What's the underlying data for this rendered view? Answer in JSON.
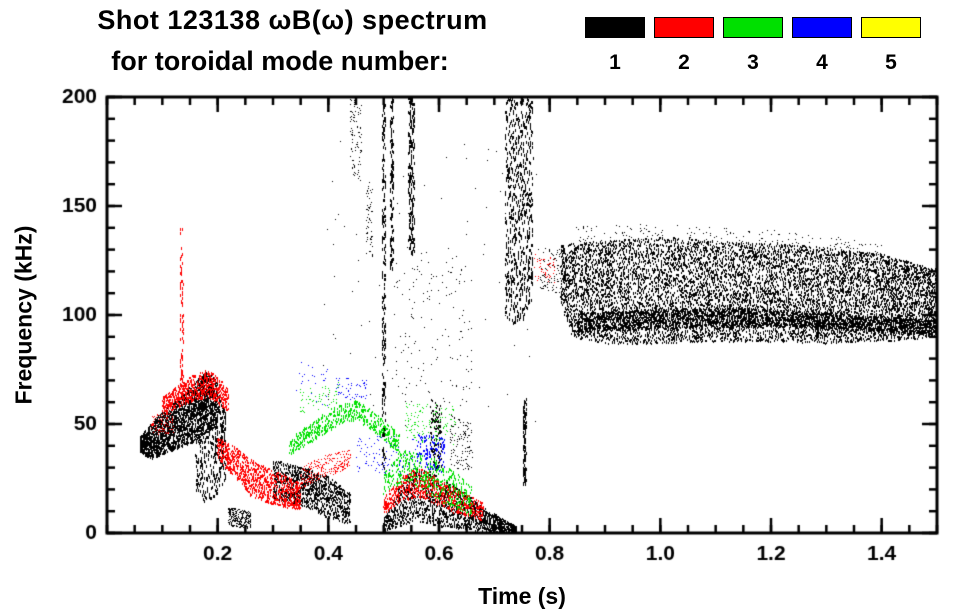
{
  "chart_data": {
    "type": "scatter",
    "title": "Shot 123138 ωB(ω) spectrum",
    "subtitle": "for toroidal mode number:",
    "xlabel": "Time (s)",
    "ylabel": "Frequency (kHz)",
    "xlim": [
      0,
      1.5
    ],
    "ylim": [
      0,
      200
    ],
    "xticks": [
      0.2,
      0.4,
      0.6,
      0.8,
      1.0,
      1.2,
      1.4
    ],
    "yticks": [
      0,
      50,
      100,
      150,
      200
    ],
    "xtick_minor_step": 0.05,
    "ytick_minor_step": 10,
    "grid": false,
    "legend_position": "top-right",
    "legend": [
      {
        "label": "1",
        "color": "#000000"
      },
      {
        "label": "2",
        "color": "#ff0000"
      },
      {
        "label": "3",
        "color": "#00e000"
      },
      {
        "label": "4",
        "color": "#0000ff"
      },
      {
        "label": "5",
        "color": "#ffff00"
      }
    ],
    "clusters": [
      {
        "name": "n1-quasistationary-band",
        "color": "#000000",
        "n": 9000,
        "h": 2,
        "path": [
          [
            0.82,
            104,
            132
          ],
          [
            0.84,
            90,
            133
          ],
          [
            0.9,
            87,
            134
          ],
          [
            1.0,
            87,
            136
          ],
          [
            1.1,
            88,
            134
          ],
          [
            1.2,
            88,
            133
          ],
          [
            1.3,
            87,
            131
          ],
          [
            1.4,
            88,
            128
          ],
          [
            1.5,
            90,
            121
          ]
        ]
      },
      {
        "name": "n1-band-dark-core",
        "color": "#000000",
        "n": 2600,
        "h": 2,
        "path": [
          [
            0.85,
            92,
            101
          ],
          [
            1.0,
            94,
            103
          ],
          [
            1.2,
            95,
            103
          ],
          [
            1.35,
            93,
            100
          ],
          [
            1.5,
            91,
            98
          ]
        ]
      },
      {
        "name": "n1-band-halo",
        "color": "#000000",
        "n": 240,
        "path": [
          [
            0.84,
            130,
            141
          ],
          [
            1.0,
            132,
            142
          ],
          [
            1.2,
            128,
            139
          ],
          [
            1.4,
            124,
            133
          ]
        ]
      },
      {
        "name": "n1-early-cluster",
        "color": "#000000",
        "n": 2300,
        "h": 2,
        "path": [
          [
            0.06,
            37,
            44
          ],
          [
            0.08,
            34,
            50
          ],
          [
            0.1,
            36,
            56
          ],
          [
            0.12,
            38,
            60
          ],
          [
            0.14,
            40,
            64
          ],
          [
            0.16,
            42,
            70
          ],
          [
            0.18,
            46,
            74
          ],
          [
            0.2,
            48,
            70
          ]
        ]
      },
      {
        "name": "n1-early-streaks",
        "color": "#000000",
        "n": 420,
        "h": 3,
        "path": [
          [
            0.16,
            18,
            62
          ],
          [
            0.18,
            14,
            76
          ],
          [
            0.2,
            18,
            66
          ],
          [
            0.215,
            24,
            56
          ]
        ]
      },
      {
        "name": "n1-early-low-blob",
        "color": "#000000",
        "n": 260,
        "path": [
          [
            0.22,
            3,
            12
          ],
          [
            0.26,
            2,
            10
          ]
        ]
      },
      {
        "name": "n1-mid-descending",
        "color": "#000000",
        "n": 1100,
        "h": 2,
        "path": [
          [
            0.3,
            16,
            34
          ],
          [
            0.33,
            14,
            32
          ],
          [
            0.36,
            12,
            30
          ],
          [
            0.4,
            7,
            26
          ],
          [
            0.44,
            4,
            18
          ]
        ]
      },
      {
        "name": "n1-chevron",
        "color": "#000000",
        "n": 1700,
        "h": 2,
        "path": [
          [
            0.5,
            1,
            6
          ],
          [
            0.53,
            3,
            22
          ],
          [
            0.56,
            6,
            30
          ],
          [
            0.6,
            3,
            26
          ],
          [
            0.64,
            2,
            20
          ],
          [
            0.68,
            1,
            12
          ],
          [
            0.72,
            0,
            6
          ],
          [
            0.74,
            0,
            3
          ]
        ]
      },
      {
        "name": "n1-streak-t050",
        "color": "#000000",
        "n": 240,
        "h": 3,
        "path": [
          [
            0.497,
            30,
            200
          ],
          [
            0.504,
            30,
            200
          ]
        ]
      },
      {
        "name": "n1-streak-t051",
        "color": "#000000",
        "n": 140,
        "h": 3,
        "path": [
          [
            0.512,
            120,
            200
          ],
          [
            0.518,
            120,
            200
          ]
        ]
      },
      {
        "name": "n1-streak-t055",
        "color": "#000000",
        "n": 220,
        "h": 3,
        "path": [
          [
            0.545,
            128,
            200
          ],
          [
            0.556,
            128,
            200
          ]
        ]
      },
      {
        "name": "n1-streaks-t075",
        "color": "#000000",
        "n": 700,
        "h": 3,
        "path": [
          [
            0.72,
            100,
            200
          ],
          [
            0.735,
            95,
            200
          ],
          [
            0.755,
            98,
            200
          ],
          [
            0.77,
            108,
            200
          ]
        ]
      },
      {
        "name": "n1-streak-t0755-low",
        "color": "#000000",
        "n": 120,
        "h": 3,
        "path": [
          [
            0.752,
            22,
            62
          ],
          [
            0.758,
            22,
            62
          ]
        ]
      },
      {
        "name": "n1-dots-t044-top",
        "color": "#000000",
        "n": 90,
        "path": [
          [
            0.44,
            165,
            200
          ],
          [
            0.46,
            160,
            200
          ]
        ]
      },
      {
        "name": "n1-dots-t047",
        "color": "#000000",
        "n": 60,
        "path": [
          [
            0.468,
            128,
            165
          ],
          [
            0.48,
            125,
            160
          ]
        ]
      },
      {
        "name": "n1-specks-mid",
        "color": "#000000",
        "n": 140,
        "path": [
          [
            0.52,
            60,
            130
          ],
          [
            0.6,
            60,
            135
          ],
          [
            0.66,
            55,
            120
          ]
        ]
      },
      {
        "name": "n1-specks-t059",
        "color": "#000000",
        "n": 140,
        "h": 2,
        "path": [
          [
            0.585,
            28,
            62
          ],
          [
            0.605,
            30,
            58
          ]
        ]
      },
      {
        "name": "n1-specks-t064",
        "color": "#000000",
        "n": 120,
        "path": [
          [
            0.62,
            30,
            55
          ],
          [
            0.66,
            28,
            50
          ]
        ]
      },
      {
        "name": "n1-dots-pre-band",
        "color": "#000000",
        "n": 90,
        "path": [
          [
            0.78,
            112,
            132
          ],
          [
            0.82,
            110,
            130
          ]
        ]
      },
      {
        "name": "n1-sparse-noise",
        "color": "#000000",
        "n": 90,
        "path": [
          [
            0.38,
            45,
            190
          ],
          [
            0.78,
            45,
            190
          ]
        ]
      },
      {
        "name": "n2-early-band",
        "color": "#ff0000",
        "n": 700,
        "h": 2,
        "path": [
          [
            0.1,
            54,
            62
          ],
          [
            0.12,
            57,
            66
          ],
          [
            0.14,
            59,
            70
          ],
          [
            0.16,
            61,
            73
          ],
          [
            0.18,
            62,
            75
          ],
          [
            0.2,
            60,
            72
          ],
          [
            0.22,
            55,
            66
          ]
        ]
      },
      {
        "name": "n2-spike-t0135",
        "color": "#ff0000",
        "n": 70,
        "h": 3,
        "path": [
          [
            0.132,
            70,
            140
          ],
          [
            0.138,
            70,
            140
          ]
        ]
      },
      {
        "name": "n2-early-dots",
        "color": "#ff0000",
        "n": 90,
        "path": [
          [
            0.08,
            44,
            54
          ],
          [
            0.12,
            46,
            56
          ]
        ]
      },
      {
        "name": "n2-descending-arc",
        "color": "#ff0000",
        "n": 950,
        "h": 2,
        "path": [
          [
            0.2,
            34,
            44
          ],
          [
            0.23,
            26,
            40
          ],
          [
            0.26,
            17,
            34
          ],
          [
            0.29,
            14,
            30
          ],
          [
            0.32,
            12,
            27
          ],
          [
            0.35,
            11,
            23
          ]
        ]
      },
      {
        "name": "n2-arc-tail",
        "color": "#ff0000",
        "n": 260,
        "path": [
          [
            0.35,
            20,
            30
          ],
          [
            0.38,
            24,
            34
          ],
          [
            0.41,
            27,
            37
          ],
          [
            0.44,
            30,
            38
          ]
        ]
      },
      {
        "name": "n2-chevron",
        "color": "#ff0000",
        "n": 750,
        "h": 2,
        "path": [
          [
            0.5,
            9,
            16
          ],
          [
            0.53,
            14,
            26
          ],
          [
            0.56,
            17,
            30
          ],
          [
            0.59,
            14,
            27
          ],
          [
            0.62,
            10,
            22
          ],
          [
            0.65,
            8,
            18
          ],
          [
            0.68,
            6,
            14
          ]
        ]
      },
      {
        "name": "n2-dots-late",
        "color": "#ff0000",
        "n": 50,
        "path": [
          [
            0.77,
            116,
            128
          ],
          [
            0.81,
            114,
            126
          ]
        ]
      },
      {
        "name": "n3-arc",
        "color": "#00e000",
        "n": 600,
        "h": 2,
        "path": [
          [
            0.33,
            36,
            43
          ],
          [
            0.36,
            40,
            49
          ],
          [
            0.39,
            45,
            55
          ],
          [
            0.42,
            50,
            59
          ],
          [
            0.45,
            52,
            61
          ],
          [
            0.48,
            47,
            56
          ],
          [
            0.51,
            40,
            50
          ],
          [
            0.53,
            36,
            45
          ]
        ]
      },
      {
        "name": "n3-lower-band",
        "color": "#00e000",
        "n": 480,
        "h": 2,
        "path": [
          [
            0.5,
            18,
            28
          ],
          [
            0.54,
            24,
            38
          ],
          [
            0.58,
            18,
            36
          ],
          [
            0.62,
            12,
            30
          ],
          [
            0.66,
            8,
            22
          ]
        ]
      },
      {
        "name": "n3-upper-dots",
        "color": "#00e000",
        "n": 140,
        "path": [
          [
            0.54,
            42,
            60
          ],
          [
            0.63,
            40,
            58
          ]
        ]
      },
      {
        "name": "n3-specks",
        "color": "#00e000",
        "n": 60,
        "path": [
          [
            0.35,
            55,
            66
          ],
          [
            0.42,
            58,
            70
          ]
        ]
      },
      {
        "name": "n4-dots-upper",
        "color": "#0000ff",
        "n": 55,
        "path": [
          [
            0.41,
            62,
            72
          ],
          [
            0.47,
            60,
            70
          ]
        ]
      },
      {
        "name": "n4-mid-sparse",
        "color": "#0000ff",
        "n": 95,
        "path": [
          [
            0.45,
            28,
            45
          ],
          [
            0.56,
            26,
            44
          ]
        ]
      },
      {
        "name": "n4-cluster",
        "color": "#0000ff",
        "n": 120,
        "h": 2,
        "path": [
          [
            0.56,
            30,
            46
          ],
          [
            0.61,
            28,
            44
          ]
        ]
      },
      {
        "name": "n4-specks",
        "color": "#0000ff",
        "n": 25,
        "path": [
          [
            0.34,
            60,
            80
          ],
          [
            0.4,
            58,
            76
          ]
        ]
      }
    ]
  }
}
